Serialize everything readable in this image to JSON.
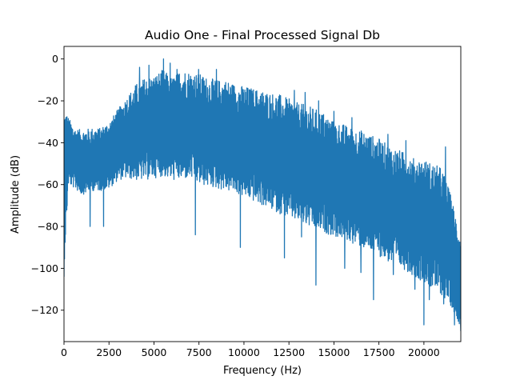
{
  "chart_data": {
    "type": "line",
    "title": "Audio One - Final Processed Signal Db",
    "xlabel": "Frequency (Hz)",
    "ylabel": "Amplitude (dB)",
    "xlim": [
      0,
      22050
    ],
    "ylim": [
      -135,
      6
    ],
    "x_ticks": [
      0,
      2500,
      5000,
      7500,
      10000,
      12500,
      15000,
      17500,
      20000
    ],
    "x_tick_labels": [
      "0",
      "2500",
      "5000",
      "7500",
      "10000",
      "12500",
      "15000",
      "17500",
      "20000"
    ],
    "y_ticks": [
      0,
      -20,
      -40,
      -60,
      -80,
      -100,
      -120
    ],
    "y_tick_labels": [
      "0",
      "−20",
      "−40",
      "−60",
      "−80",
      "−100",
      "−120"
    ],
    "grid": false,
    "series": [
      {
        "color": "#1f77b4",
        "x": [
          0,
          250,
          600,
          1000,
          1500,
          2000,
          2500,
          3000,
          3500,
          4000,
          4500,
          5000,
          5500,
          6000,
          6500,
          7000,
          7500,
          8000,
          8500,
          9000,
          9500,
          10000,
          10500,
          11000,
          11500,
          12000,
          12500,
          13000,
          13500,
          14000,
          14500,
          15000,
          15500,
          16000,
          16500,
          17000,
          17500,
          18000,
          18500,
          19000,
          19500,
          20000,
          20500,
          21000,
          21500,
          22050
        ],
        "upper": [
          -22,
          -28,
          -33,
          -34,
          -33,
          -33,
          -30,
          -24,
          -18,
          -12,
          -9,
          -8,
          -5,
          -9,
          -5,
          -6,
          -7,
          -9,
          -10,
          -10,
          -12,
          -13,
          -14,
          -15,
          -16,
          -17,
          -19,
          -21,
          -22,
          -24,
          -26,
          -30,
          -31,
          -33,
          -34,
          -36,
          -38,
          -41,
          -43,
          -45,
          -47,
          -48,
          -50,
          -52,
          -65,
          -85
        ],
        "lower": [
          -100,
          -60,
          -62,
          -65,
          -63,
          -63,
          -62,
          -58,
          -57,
          -58,
          -58,
          -57,
          -56,
          -58,
          -58,
          -57,
          -60,
          -61,
          -62,
          -63,
          -64,
          -66,
          -68,
          -70,
          -72,
          -74,
          -76,
          -78,
          -80,
          -82,
          -83,
          -85,
          -86,
          -88,
          -90,
          -92,
          -94,
          -97,
          -99,
          -101,
          -104,
          -107,
          -110,
          -113,
          -118,
          -128
        ],
        "spikes_up": [
          [
            5530,
            0
          ],
          [
            6280,
            -5
          ],
          [
            4720,
            -3
          ],
          [
            5900,
            -2
          ],
          [
            4200,
            -4
          ],
          [
            7480,
            -5
          ],
          [
            8470,
            -5
          ],
          [
            12800,
            -15
          ],
          [
            13400,
            -16
          ],
          [
            14150,
            -20
          ],
          [
            15000,
            -25
          ],
          [
            16000,
            -28
          ],
          [
            18000,
            -36
          ],
          [
            19000,
            -39
          ],
          [
            20000,
            -40
          ],
          [
            21200,
            -42
          ]
        ],
        "spikes_down": [
          [
            0,
            -104
          ],
          [
            1450,
            -80
          ],
          [
            2200,
            -80
          ],
          [
            7300,
            -84
          ],
          [
            9800,
            -90
          ],
          [
            12250,
            -95
          ],
          [
            13200,
            -85
          ],
          [
            14000,
            -108
          ],
          [
            15600,
            -100
          ],
          [
            16500,
            -102
          ],
          [
            17200,
            -115
          ],
          [
            18300,
            -103
          ],
          [
            19500,
            -110
          ],
          [
            20000,
            -127
          ],
          [
            20300,
            -115
          ],
          [
            21100,
            -117
          ],
          [
            21700,
            -127
          ],
          [
            22050,
            -130
          ]
        ]
      }
    ]
  }
}
